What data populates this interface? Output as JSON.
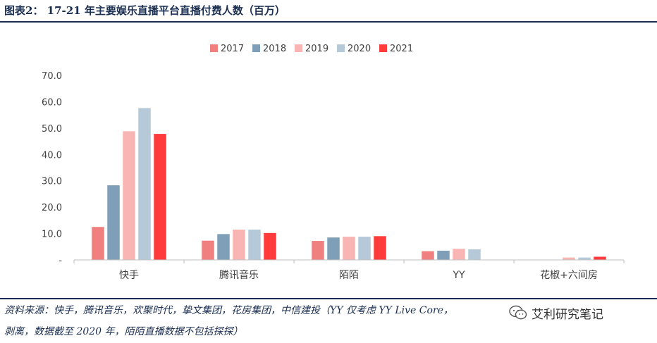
{
  "title": "图表2： 17-21 年主要娱乐直播平台直播付费人数（百万）",
  "source": {
    "line1": "资料来源：快手，腾讯音乐，欢聚时代，挚文集团，花房集团，中信建投（YY 仅考虑 YY Live Core，",
    "line2": "剥离，数据截至 2020 年，陌陌直播数据不包括探探）"
  },
  "watermark": {
    "text": "艾利研究笔记",
    "icon": "wechat-icon"
  },
  "chart_data": {
    "type": "bar",
    "categories": [
      "快手",
      "腾讯音乐",
      "陌陌",
      "YY",
      "花椒+六间房"
    ],
    "series": [
      {
        "name": "2017",
        "color": "#f08080",
        "values": [
          12.5,
          7.3,
          7.2,
          3.3,
          0.0
        ]
      },
      {
        "name": "2018",
        "color": "#7f9fb8",
        "values": [
          28.3,
          9.8,
          8.5,
          3.5,
          0.0
        ]
      },
      {
        "name": "2019",
        "color": "#f9b4b4",
        "values": [
          48.8,
          11.5,
          8.8,
          4.2,
          0.9
        ]
      },
      {
        "name": "2020",
        "color": "#b6c9d8",
        "values": [
          57.6,
          11.5,
          8.8,
          4.0,
          0.9
        ]
      },
      {
        "name": "2021",
        "color": "#ff3b3b",
        "values": [
          47.8,
          10.2,
          9.0,
          null,
          1.2
        ]
      }
    ],
    "yticks": [
      "-",
      "10.0",
      "20.0",
      "30.0",
      "40.0",
      "50.0",
      "60.0",
      "70.0"
    ],
    "ylim": [
      0,
      70
    ],
    "xlabel": "",
    "ylabel": "",
    "legend_position": "top-center",
    "grid": false
  }
}
